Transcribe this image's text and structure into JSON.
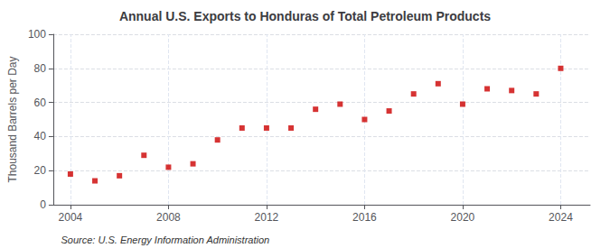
{
  "chart_data": {
    "type": "scatter",
    "title": "Annual U.S. Exports to Honduras of Total Petroleum Products",
    "ylabel": "Thousand Barrels per Day",
    "annotations": [
      "Source: U.S. Energy Information Administration"
    ],
    "x": [
      2004,
      2005,
      2006,
      2007,
      2008,
      2009,
      2010,
      2011,
      2012,
      2013,
      2014,
      2015,
      2016,
      2017,
      2018,
      2019,
      2020,
      2021,
      2022,
      2023,
      2024
    ],
    "values": [
      18,
      14,
      17,
      29,
      22,
      24,
      38,
      45,
      45,
      45,
      56,
      59,
      50,
      55,
      65,
      71,
      59,
      68,
      67,
      65,
      80
    ],
    "color": "#cc0000",
    "marker": "square",
    "xlim": [
      2003.3,
      2025.2
    ],
    "ylim": [
      0,
      100
    ],
    "xticks": [
      2004,
      2008,
      2012,
      2016,
      2020,
      2024
    ],
    "yticks": [
      0,
      20,
      40,
      60,
      80,
      100
    ],
    "grid": true
  }
}
